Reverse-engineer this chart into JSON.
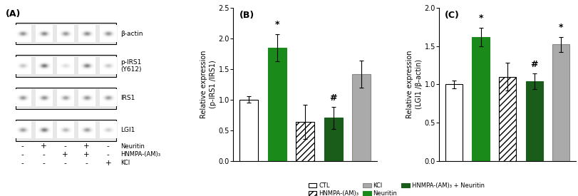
{
  "panel_B": {
    "title": "(B)",
    "ylabel": "Relative expression\n(p-IRS1 /IRS1)",
    "ylim": [
      0,
      2.5
    ],
    "yticks": [
      0,
      0.5,
      1,
      1.5,
      2,
      2.5
    ],
    "values": [
      1.0,
      1.85,
      0.63,
      0.7,
      1.42
    ],
    "errors": [
      0.05,
      0.22,
      0.28,
      0.18,
      0.22
    ],
    "colors": [
      "white",
      "#1a8a1a",
      "white",
      "#1a5c1a",
      "#aaaaaa"
    ],
    "hatches": [
      "",
      "",
      "////",
      "////",
      ""
    ],
    "edgecolors": [
      "black",
      "#1a8a1a",
      "black",
      "#1a5c1a",
      "#888888"
    ],
    "annotations": [
      "",
      "*",
      "",
      "#",
      ""
    ]
  },
  "panel_C": {
    "title": "(C)",
    "ylabel": "Relative expression\n(LGI1 /β-actin)",
    "ylim": [
      0,
      2.0
    ],
    "yticks": [
      0,
      0.5,
      1,
      1.5,
      2
    ],
    "values": [
      1.0,
      1.62,
      1.1,
      1.04,
      1.52
    ],
    "errors": [
      0.05,
      0.12,
      0.18,
      0.1,
      0.1
    ],
    "colors": [
      "white",
      "#1a8a1a",
      "white",
      "#1a5c1a",
      "#aaaaaa"
    ],
    "hatches": [
      "",
      "",
      "////",
      "////",
      ""
    ],
    "edgecolors": [
      "black",
      "#1a8a1a",
      "black",
      "#1a5c1a",
      "#888888"
    ],
    "annotations": [
      "",
      "*",
      "",
      "#",
      "*"
    ]
  },
  "legend": {
    "labels": [
      "CTL",
      "HNMPA-(AM)₃",
      "KCl",
      "Neuritin",
      "HNMPA-(AM)₃ + Neuritin"
    ],
    "colors": [
      "white",
      "white",
      "#aaaaaa",
      "#1a8a1a",
      "#1a5c1a"
    ],
    "hatches": [
      "",
      "////",
      "",
      "",
      "////"
    ],
    "edgecolors": [
      "black",
      "black",
      "#888888",
      "#1a8a1a",
      "#1a5c1a"
    ]
  },
  "panel_A_label": "(A)",
  "figure_bg": "white",
  "bar_width": 0.65,
  "fontsize": 7,
  "blot_rows": [
    {
      "label": "β-actin",
      "intensities": [
        0.58,
        0.62,
        0.55,
        0.6,
        0.56
      ]
    },
    {
      "label": "p-IRS1\n(Y612)",
      "intensities": [
        0.3,
        0.72,
        0.18,
        0.65,
        0.28
      ]
    },
    {
      "label": "IRS1",
      "intensities": [
        0.55,
        0.58,
        0.5,
        0.56,
        0.52
      ]
    },
    {
      "label": "LGI1",
      "intensities": [
        0.52,
        0.7,
        0.38,
        0.52,
        0.25
      ]
    }
  ],
  "blot_treatments": [
    [
      "-",
      "+",
      "-",
      "+",
      "-"
    ],
    [
      "-",
      "-",
      "+",
      "+",
      "-"
    ],
    [
      "-",
      "-",
      "-",
      "-",
      "+"
    ]
  ],
  "blot_treatment_labels": [
    "Neuritin",
    "HNMPA-(AM)₃",
    "KCl"
  ]
}
